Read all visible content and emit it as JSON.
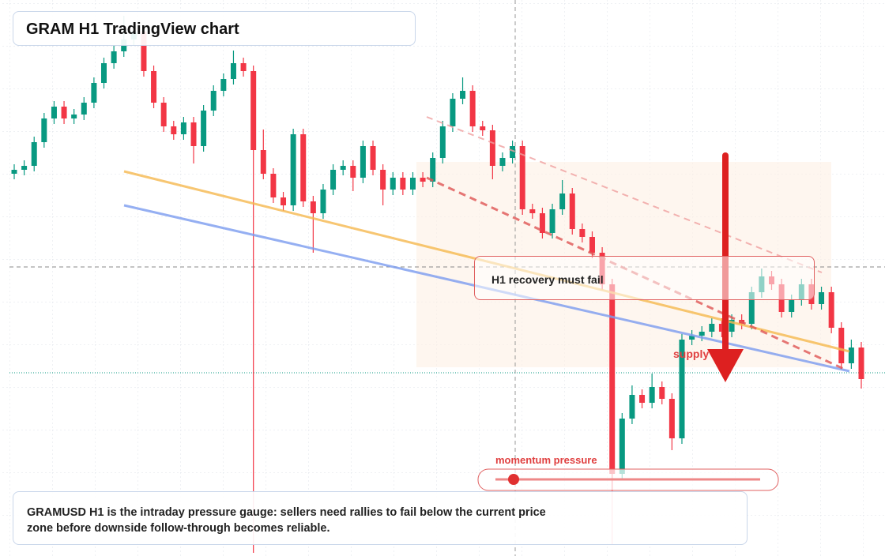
{
  "chart_data": {
    "type": "candlestick",
    "title": "GRAM H1 TradingView chart",
    "annotations": {
      "recovery": "H1 recovery must fail",
      "supply": "supply zone",
      "momentum": "momentum pressure"
    },
    "caption": "GRAMUSD H1 is the intraday pressure gauge: sellers need rallies to fail below the current price zone before downside follow-through becomes reliable.",
    "up_color": "#089981",
    "down_color": "#f23645",
    "ylim": [
      0,
      704
    ],
    "open": [
      484,
      489,
      494,
      524,
      554,
      569,
      554,
      559,
      574,
      599,
      624,
      639,
      654,
      664,
      614,
      574,
      544,
      534,
      549,
      519,
      564,
      589,
      604,
      624,
      614,
      514,
      484,
      454,
      444,
      534,
      449,
      434,
      464,
      489,
      494,
      479,
      519,
      489,
      464,
      479,
      464,
      479,
      474,
      504,
      544,
      579,
      589,
      544,
      539,
      494,
      504,
      519,
      439,
      434,
      409,
      439,
      459,
      414,
      404,
      384,
      344,
      104,
      174,
      204,
      194,
      214,
      199,
      149,
      274,
      279,
      284,
      294,
      284,
      299,
      294,
      334,
      354,
      344,
      309,
      324,
      344,
      319,
      334,
      289,
      244,
      264
    ],
    "high": [
      496,
      501,
      531,
      561,
      576,
      576,
      566,
      581,
      606,
      631,
      646,
      684,
      671,
      671,
      621,
      581,
      551,
      556,
      556,
      571,
      596,
      611,
      640,
      631,
      621,
      540,
      491,
      461,
      541,
      541,
      456,
      471,
      496,
      501,
      501,
      526,
      526,
      496,
      486,
      486,
      486,
      486,
      511,
      551,
      586,
      606,
      596,
      551,
      546,
      511,
      526,
      526,
      446,
      441,
      446,
      476,
      466,
      421,
      411,
      391,
      351,
      181,
      216,
      211,
      231,
      221,
      206,
      281,
      286,
      291,
      301,
      301,
      306,
      306,
      341,
      364,
      361,
      351,
      331,
      351,
      351,
      341,
      341,
      296,
      274,
      271
    ],
    "low": [
      477,
      482,
      487,
      517,
      547,
      547,
      547,
      552,
      567,
      592,
      617,
      632,
      647,
      607,
      567,
      537,
      527,
      527,
      497,
      512,
      557,
      582,
      597,
      607,
      4,
      477,
      447,
      437,
      437,
      442,
      384,
      427,
      457,
      482,
      462,
      472,
      482,
      444,
      457,
      457,
      457,
      467,
      467,
      497,
      537,
      572,
      537,
      532,
      477,
      487,
      497,
      432,
      427,
      402,
      402,
      432,
      407,
      397,
      377,
      337,
      14,
      97,
      167,
      187,
      187,
      192,
      134,
      142,
      267,
      272,
      277,
      277,
      277,
      287,
      287,
      327,
      337,
      302,
      302,
      317,
      312,
      312,
      282,
      237,
      237,
      212
    ],
    "close": [
      489,
      494,
      524,
      554,
      569,
      554,
      559,
      574,
      599,
      624,
      639,
      654,
      664,
      614,
      574,
      544,
      534,
      549,
      519,
      564,
      589,
      604,
      624,
      614,
      514,
      484,
      454,
      444,
      534,
      449,
      434,
      464,
      489,
      494,
      479,
      519,
      489,
      464,
      479,
      464,
      479,
      474,
      504,
      544,
      579,
      589,
      544,
      539,
      494,
      504,
      519,
      439,
      434,
      409,
      439,
      459,
      414,
      404,
      384,
      344,
      104,
      174,
      204,
      194,
      214,
      199,
      149,
      274,
      279,
      284,
      294,
      284,
      299,
      294,
      334,
      354,
      344,
      309,
      324,
      344,
      319,
      334,
      289,
      244,
      264,
      224
    ]
  }
}
